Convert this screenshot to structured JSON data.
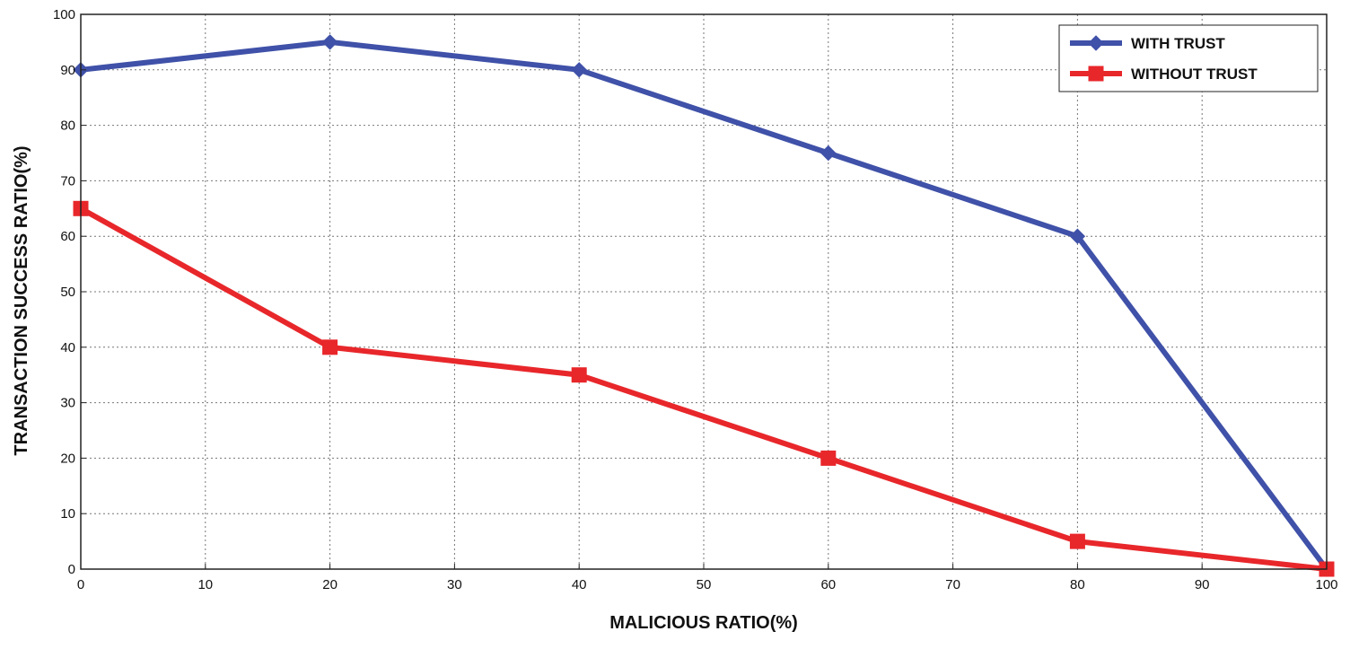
{
  "chart_data": {
    "type": "line",
    "title": "",
    "xlabel": "MALICIOUS RATIO(%)",
    "ylabel": "TRANSACTION SUCCESS RATIO(%)",
    "xlim": [
      0,
      100
    ],
    "ylim": [
      0,
      100
    ],
    "x_ticks": [
      0,
      10,
      20,
      30,
      40,
      50,
      60,
      70,
      80,
      90,
      100
    ],
    "y_ticks": [
      0,
      10,
      20,
      30,
      40,
      50,
      60,
      70,
      80,
      90,
      100
    ],
    "grid": true,
    "legend_position": "top-right",
    "series": [
      {
        "name": "WITH TRUST",
        "color": "#3f51a8",
        "marker": "diamond",
        "x": [
          0,
          20,
          40,
          60,
          80,
          100
        ],
        "values": [
          90,
          95,
          90,
          75,
          60,
          0
        ]
      },
      {
        "name": "WITHOUT TRUST",
        "color": "#e8272b",
        "marker": "square",
        "x": [
          0,
          20,
          40,
          60,
          80,
          100
        ],
        "values": [
          65,
          40,
          35,
          20,
          5,
          0
        ]
      }
    ]
  }
}
